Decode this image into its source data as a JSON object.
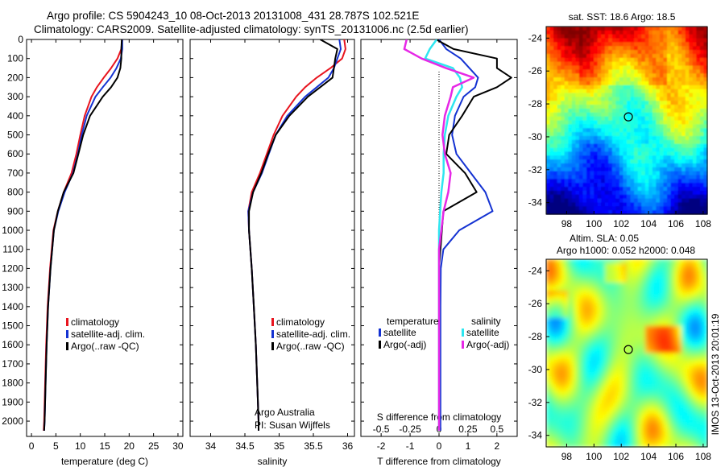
{
  "titles": {
    "line1": "Argo profile: CS 5904243_10 08-Oct-2013 20131008_431 28.787S 102.521E",
    "line2": "Climatology: CARS2009. Satellite-adjusted climatology: synTS_20131006.nc (2.5d earlier)",
    "sst_title": "sat. SST: 18.6 Argo: 18.5",
    "sla_title1": "Altim. SLA: 0.05",
    "sla_title2": "Argo h1000: 0.052 h2000: 0.048",
    "side_stamp": "IMOS 13-Oct-2013 20:01:19",
    "credit1": "Argo Australia",
    "credit2": "PI: Susan Wijffels"
  },
  "colors": {
    "climatology": "#e8141e",
    "satellite": "#1432d2",
    "argo": "#000000",
    "sal_satellite": "#2ee6f0",
    "sal_argo": "#e628e6"
  },
  "chart_data": [
    {
      "type": "line",
      "id": "temperature",
      "xlabel": "temperature (deg C)",
      "xlim": [
        -1,
        31
      ],
      "xticks": [
        0,
        5,
        10,
        15,
        20,
        25,
        30
      ],
      "ylim": [
        2080,
        0
      ],
      "yticks": [
        0,
        100,
        200,
        300,
        400,
        500,
        600,
        700,
        800,
        900,
        1000,
        1100,
        1200,
        1300,
        1400,
        1500,
        1600,
        1700,
        1800,
        1900,
        2000
      ],
      "legend": [
        "climatology",
        "satellite-adj. clim.",
        "Argo(..raw -QC)"
      ],
      "depth": [
        0,
        50,
        100,
        150,
        200,
        250,
        300,
        400,
        500,
        600,
        700,
        800,
        900,
        1000,
        1200,
        1400,
        1600,
        1800,
        2000,
        2050
      ],
      "series": [
        {
          "name": "climatology",
          "color": "climatology",
          "x": [
            18.6,
            18.4,
            17.6,
            16.3,
            14.8,
            13.4,
            12.3,
            10.9,
            10.0,
            9.2,
            8.2,
            6.6,
            5.4,
            4.5,
            3.8,
            3.3,
            3.0,
            2.8,
            2.6,
            2.5
          ]
        },
        {
          "name": "satellite-adj. clim.",
          "color": "satellite",
          "x": [
            18.6,
            18.6,
            18.3,
            17.4,
            16.2,
            14.6,
            13.1,
            11.3,
            10.3,
            9.5,
            8.5,
            6.8,
            5.5,
            4.6,
            3.9,
            3.4,
            3.1,
            2.9,
            2.7,
            2.6
          ]
        },
        {
          "name": "Argo(..raw -QC)",
          "color": "argo",
          "x": [
            18.5,
            18.4,
            18.4,
            18.2,
            17.6,
            16.3,
            14.6,
            12.0,
            10.6,
            9.6,
            8.6,
            6.6,
            5.4,
            4.6,
            3.9,
            3.4,
            3.1,
            2.9,
            2.7,
            2.6
          ]
        }
      ]
    },
    {
      "type": "line",
      "id": "salinity",
      "xlabel": "salinity",
      "xlim": [
        33.7,
        36.1
      ],
      "xticks": [
        34,
        34.5,
        35,
        35.5,
        36
      ],
      "xticklabels": [
        "34",
        "34.5",
        "35",
        "35.5",
        "36"
      ],
      "ylim": [
        2080,
        0
      ],
      "legend": [
        "climatology",
        "satellite-adj. clim.",
        "Argo(..raw -QC)"
      ],
      "depth": [
        0,
        50,
        100,
        150,
        200,
        250,
        300,
        400,
        500,
        600,
        700,
        800,
        900,
        1000,
        1100,
        1200,
        1400,
        1600,
        1800,
        2000,
        2050
      ],
      "series": [
        {
          "name": "climatology",
          "color": "climatology",
          "x": [
            35.95,
            35.97,
            35.92,
            35.75,
            35.55,
            35.38,
            35.25,
            35.05,
            34.92,
            34.82,
            34.72,
            34.6,
            34.55,
            34.56,
            34.58,
            34.6,
            34.63,
            34.66,
            34.68,
            34.7,
            34.7
          ]
        },
        {
          "name": "satellite-adj. clim.",
          "color": "satellite",
          "x": [
            35.88,
            35.9,
            35.85,
            35.8,
            35.72,
            35.55,
            35.38,
            35.12,
            34.95,
            34.85,
            34.75,
            34.62,
            34.55,
            34.56,
            34.58,
            34.6,
            34.63,
            34.66,
            34.68,
            34.7,
            34.7
          ]
        },
        {
          "name": "Argo(..raw -QC)",
          "color": "argo",
          "x": [
            35.6,
            35.85,
            35.82,
            35.8,
            35.78,
            35.6,
            35.42,
            35.15,
            34.95,
            34.84,
            34.74,
            34.62,
            34.56,
            34.56,
            34.58,
            34.6,
            34.63,
            34.66,
            34.68,
            34.7,
            34.7
          ]
        }
      ]
    },
    {
      "type": "line",
      "id": "difference",
      "xlabel": "T difference from climatology",
      "xlabel_top": "S difference from climatology",
      "xlim": [
        -2.7,
        2.7
      ],
      "xticks": [
        -2,
        -1,
        0,
        1,
        2
      ],
      "sticks": [
        -0.5,
        -0.25,
        0,
        0.25,
        0.5
      ],
      "sticklabels": [
        "-0.5",
        "-0.25",
        "0",
        "0.25",
        "0.5"
      ],
      "ylim": [
        2080,
        0
      ],
      "legend_left_title": "temperature",
      "legend_right_title": "salinity",
      "legend_left": [
        "satellite",
        "Argo(-adj)"
      ],
      "legend_right": [
        "satellite",
        "Argo(-adj)"
      ],
      "depth": [
        0,
        50,
        100,
        150,
        200,
        250,
        300,
        400,
        500,
        600,
        700,
        800,
        900,
        1000,
        1100,
        1200,
        1400,
        1600,
        1800,
        2000,
        2050
      ],
      "series": [
        {
          "name": "satellite",
          "group": "temperature",
          "color": "satellite",
          "x": [
            0.0,
            0.25,
            0.75,
            1.05,
            1.35,
            1.25,
            0.85,
            0.55,
            0.45,
            0.6,
            1.1,
            1.6,
            1.85,
            0.7,
            0.15,
            0.06,
            0.05,
            0.05,
            0.05,
            0.05,
            0.05
          ]
        },
        {
          "name": "Argo(-adj)",
          "group": "temperature",
          "color": "argo",
          "x": [
            -0.1,
            0.5,
            2.0,
            2.0,
            2.5,
            2.0,
            1.2,
            0.8,
            0.35,
            0.25,
            0.9,
            1.3,
            0.15,
            0.1,
            0.05,
            0.0,
            0.0,
            0.0,
            0.0,
            0.0,
            0.0
          ]
        },
        {
          "name": "satellite",
          "group": "salinity",
          "color": "sal_satellite",
          "x": [
            -0.02,
            -0.08,
            -0.12,
            0.12,
            0.18,
            0.2,
            0.15,
            0.08,
            0.05,
            0.04,
            0.04,
            0.02,
            0.01,
            0.0,
            0.0,
            0.0,
            0.0,
            0.0,
            0.0,
            0.0,
            0.0
          ]
        },
        {
          "name": "Argo(-adj)",
          "group": "salinity",
          "color": "sal_argo",
          "x": [
            -0.28,
            -0.3,
            -0.15,
            0.06,
            0.3,
            0.12,
            0.1,
            0.05,
            0.03,
            0.05,
            0.1,
            0.08,
            0.04,
            0.02,
            0.0,
            0.0,
            0.0,
            0.0,
            0.0,
            0.0,
            0.0
          ]
        }
      ]
    },
    {
      "type": "heatmap",
      "id": "sst_map",
      "title": "sat. SST: 18.6 Argo: 18.5",
      "xlim": [
        96.5,
        108.3
      ],
      "ylim": [
        -34.7,
        -23.3
      ],
      "xticks": [
        98,
        100,
        102,
        104,
        106,
        108
      ],
      "yticks": [
        -24,
        -26,
        -28,
        -30,
        -32,
        -34
      ],
      "marker": {
        "lon": 102.521,
        "lat": -28.787
      },
      "colormap": "jet"
    },
    {
      "type": "heatmap",
      "id": "sla_map",
      "title": "Altim. SLA: 0.05",
      "xlim": [
        96.5,
        108.3
      ],
      "ylim": [
        -34.7,
        -23.3
      ],
      "xticks": [
        98,
        100,
        102,
        104,
        106,
        108
      ],
      "yticks": [
        -24,
        -26,
        -28,
        -30,
        -32,
        -34
      ],
      "marker": {
        "lon": 102.521,
        "lat": -28.787
      },
      "colormap": "jet"
    }
  ]
}
